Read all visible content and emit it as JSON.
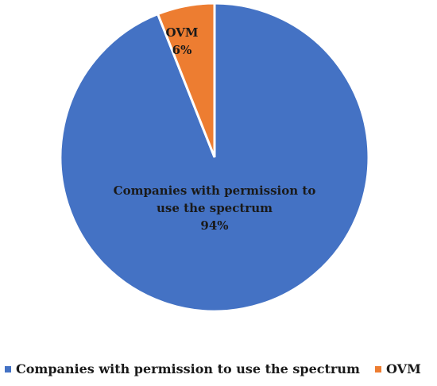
{
  "chart_data": {
    "type": "pie",
    "categories": [
      "Companies with permission to use the spectrum",
      "OVM"
    ],
    "values": [
      94,
      6
    ],
    "data_labels": [
      {
        "lines": [
          "Companies with permission to",
          "use the spectrum",
          "94%"
        ]
      },
      {
        "lines": [
          "OVM",
          "6%"
        ]
      }
    ],
    "colors": [
      "#4472c4",
      "#ed7d31"
    ],
    "title": "",
    "legend_position": "bottom",
    "start_angle": "12 o'clock, clockwise"
  },
  "legend": {
    "items": [
      {
        "label": "Companies with permission to use the spectrum",
        "color": "#4472c4"
      },
      {
        "label": "OVM",
        "color": "#ed7d31"
      }
    ]
  }
}
